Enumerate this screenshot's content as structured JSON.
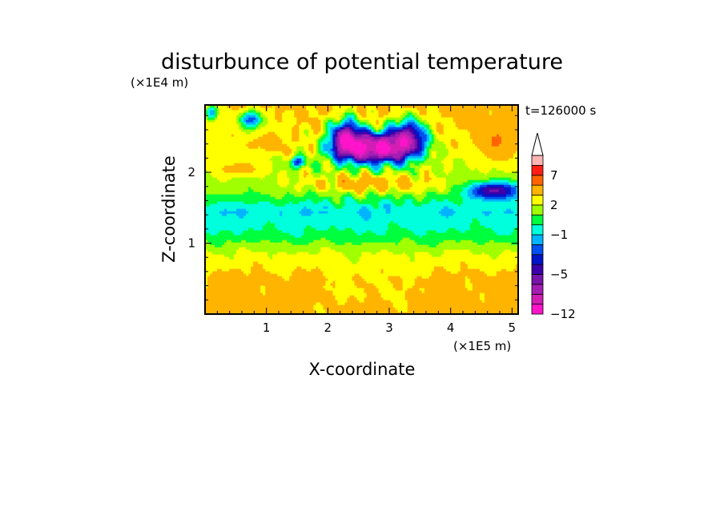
{
  "chart_data": {
    "type": "heatmap",
    "title": "disturbunce of potential temperature",
    "xlabel": "X-coordinate",
    "ylabel": "Z-coordinate",
    "x_unit": "(×1E5 m)",
    "y_unit": "(×1E4 m)",
    "time_label": "t=126000 s",
    "xlim": [
      0,
      5.1
    ],
    "ylim": [
      0,
      2.95
    ],
    "x_ticks": [
      1,
      2,
      3,
      4,
      5
    ],
    "y_ticks": [
      1,
      2
    ],
    "colorbar": {
      "levels": [
        -12,
        -10,
        -8,
        -6,
        -5,
        -4,
        -3,
        -2,
        -1,
        0,
        1,
        2,
        3,
        5,
        7,
        9,
        11
      ],
      "labels": [
        {
          "text": "-12",
          "value": -12
        },
        {
          "text": "-5",
          "value": -5
        },
        {
          "text": "-1",
          "value": -1
        },
        {
          "text": "2",
          "value": 2
        },
        {
          "text": "7",
          "value": 7
        }
      ],
      "colors": [
        "#ff14cc",
        "#d21eb4",
        "#a51eb4",
        "#7814aa",
        "#3c00aa",
        "#0014c8",
        "#0050f0",
        "#00b4ff",
        "#00ffdc",
        "#00ff3c",
        "#a0ff00",
        "#ffff00",
        "#ffb400",
        "#ff6400",
        "#ff1e14",
        "#ffb4b4"
      ],
      "extend": "max"
    },
    "grid": false,
    "field_description": "layered field: warm near surface (~+2), cold band near 1.4E4 m (~-1), strong mixed warm/cold anomalies above 1.6E4 m with cold core near x=2.7E5 m, z=2.4E4 m"
  }
}
